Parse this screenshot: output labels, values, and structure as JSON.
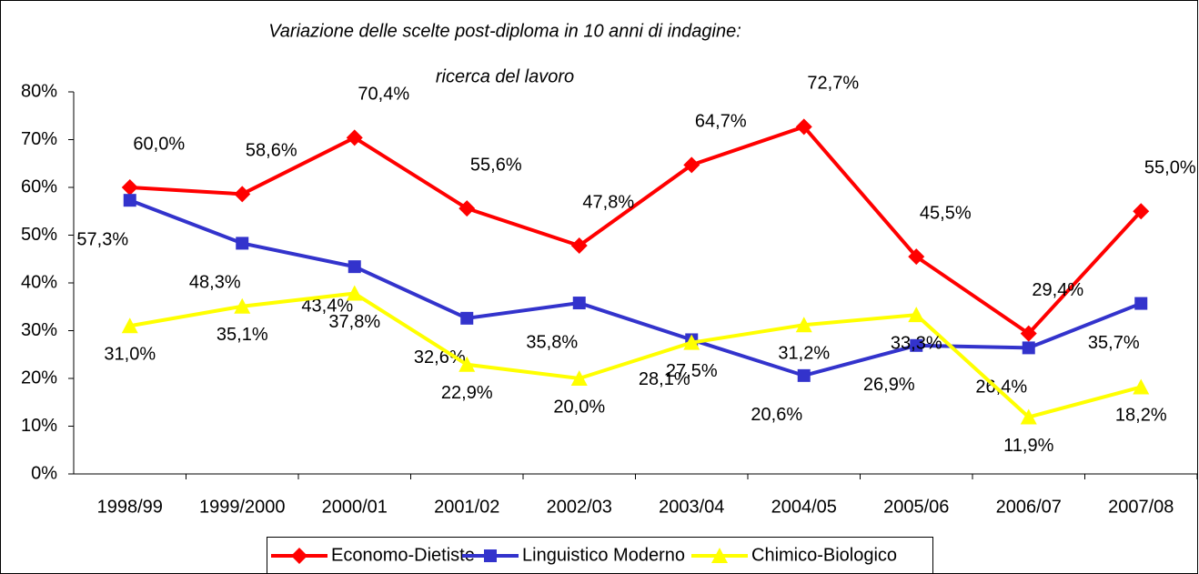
{
  "chart_data": {
    "type": "line",
    "title": [
      "Variazione delle scelte post-diploma in 10 anni di indagine:",
      "ricerca del lavoro"
    ],
    "categories": [
      "1998/99",
      "1999/2000",
      "2000/01",
      "2001/02",
      "2002/03",
      "2003/04",
      "2004/05",
      "2005/06",
      "2006/07",
      "2007/08"
    ],
    "ylim": [
      0,
      80
    ],
    "yticks": [
      {
        "value": 0,
        "label": "0%"
      },
      {
        "value": 10,
        "label": "10%"
      },
      {
        "value": 20,
        "label": "20%"
      },
      {
        "value": 30,
        "label": "30%"
      },
      {
        "value": 40,
        "label": "40%"
      },
      {
        "value": 50,
        "label": "50%"
      },
      {
        "value": 60,
        "label": "60%"
      },
      {
        "value": 70,
        "label": "70%"
      },
      {
        "value": 80,
        "label": "80%"
      }
    ],
    "legend": "bottom",
    "series": [
      {
        "name": "Economo-Dietiste",
        "color": "#ff0000",
        "marker": "diamond",
        "values": [
          60.0,
          58.6,
          70.4,
          55.6,
          47.8,
          64.7,
          72.7,
          45.5,
          29.4,
          55.0
        ],
        "value_labels": [
          "60,0%",
          "58,6%",
          "70,4%",
          "55,6%",
          "47,8%",
          "64,7%",
          "72,7%",
          "45,5%",
          "29,4%",
          "55,0%"
        ]
      },
      {
        "name": "Linguistico Moderno",
        "color": "#3333cc",
        "marker": "square",
        "values": [
          57.3,
          48.3,
          43.4,
          32.6,
          35.8,
          28.1,
          20.6,
          26.9,
          26.4,
          35.7
        ],
        "value_labels": [
          "57,3%",
          "48,3%",
          "43,4%",
          "32,6%",
          "35,8%",
          "28,1%",
          "20,6%",
          "26,9%",
          "26,4%",
          "35,7%"
        ]
      },
      {
        "name": "Chimico-Biologico",
        "color": "#ffff00",
        "marker": "triangle",
        "values": [
          31.0,
          35.1,
          37.8,
          22.9,
          20.0,
          27.5,
          31.2,
          33.3,
          11.9,
          18.2
        ],
        "value_labels": [
          "31,0%",
          "35,1%",
          "37,8%",
          "22,9%",
          "20,0%",
          "27,5%",
          "31,2%",
          "33,3%",
          "11,9%",
          "18,2%"
        ]
      }
    ]
  }
}
